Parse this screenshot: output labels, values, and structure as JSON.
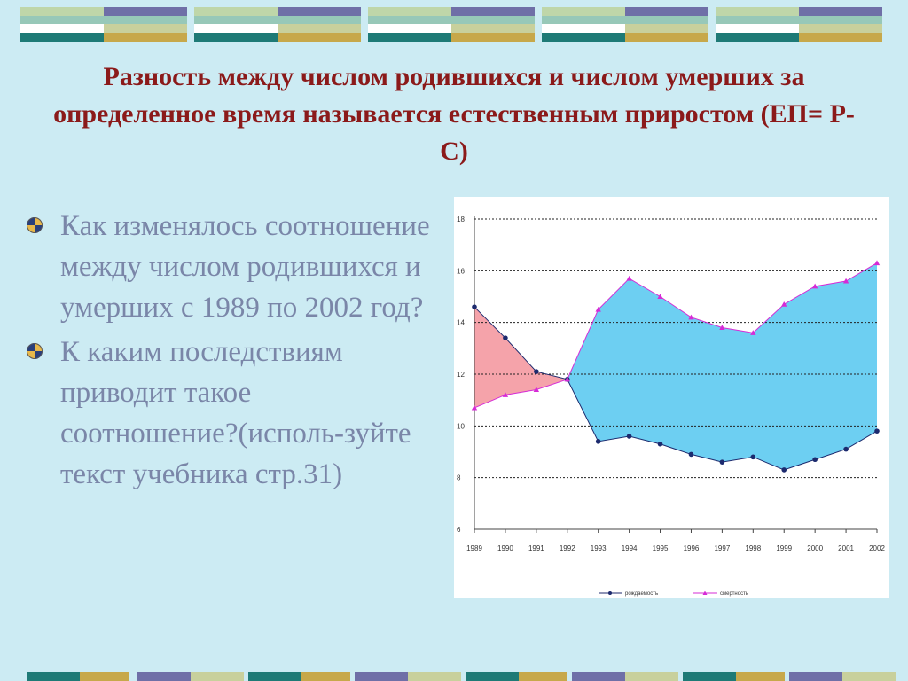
{
  "slide": {
    "title": "Разность между числом родившихся и числом умерших за определенное время называется естественным приростом  (ЕП= Р-С)",
    "bullets": [
      "Как изменялось соотношение между числом родившихся и умерших с 1989 по 2002 год?",
      "К каким последствиям приводит такое соотношение?(исполь-зуйте текст учебника стр.31)"
    ]
  },
  "colors": {
    "background": "#ccebf3",
    "title": "#8b1a1a",
    "bullet_text": "#7a86a8",
    "births_line": "#1c2a6e",
    "deaths_line": "#d62bd6",
    "positive_fill": "#f5a3aa",
    "negative_fill": "#6dcff2"
  },
  "chart_data": {
    "type": "line",
    "categories": [
      "1989",
      "1990",
      "1991",
      "1992",
      "1993",
      "1994",
      "1995",
      "1996",
      "1997",
      "1998",
      "1999",
      "2000",
      "2001",
      "2002"
    ],
    "series": [
      {
        "name": "рождаемость",
        "values": [
          14.6,
          13.4,
          12.1,
          11.8,
          9.4,
          9.6,
          9.3,
          8.9,
          8.6,
          8.8,
          8.3,
          8.7,
          9.1,
          9.8
        ]
      },
      {
        "name": "смертность",
        "values": [
          10.7,
          11.2,
          11.4,
          11.8,
          14.5,
          15.7,
          15.0,
          14.2,
          13.8,
          13.6,
          14.7,
          15.4,
          15.6,
          16.3
        ]
      }
    ],
    "ylim": [
      6,
      18
    ],
    "yticks": [
      "6",
      "8",
      "10",
      "12",
      "14",
      "16",
      "18"
    ],
    "grid": true,
    "legend_position": "bottom"
  }
}
